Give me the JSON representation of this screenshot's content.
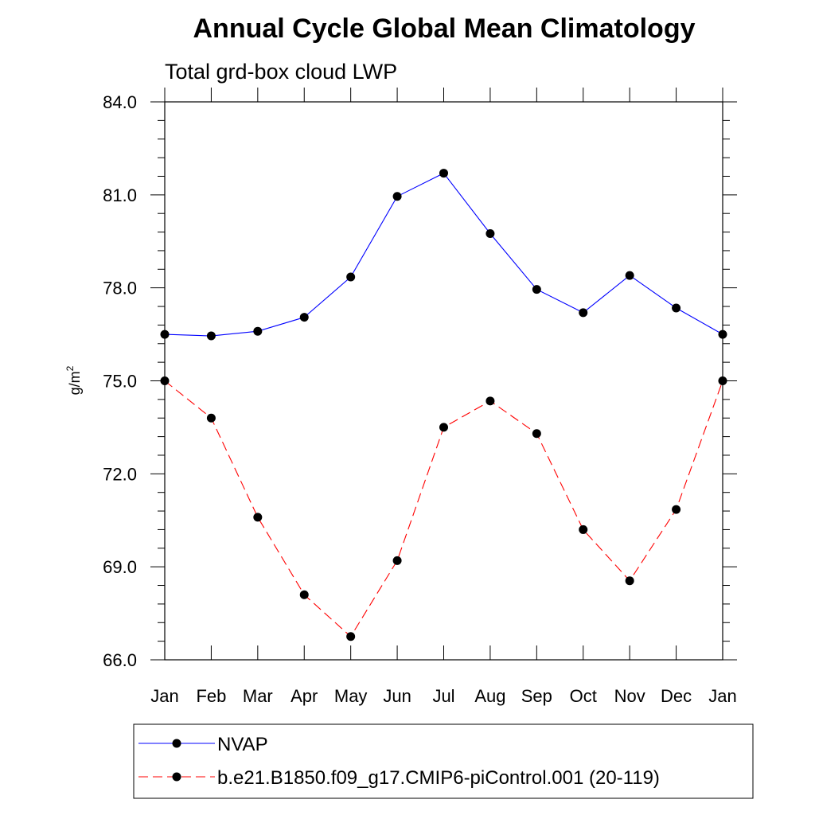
{
  "chart_data": {
    "type": "line",
    "title": "Annual Cycle Global Mean Climatology",
    "subtitle": "Total grd-box cloud LWP",
    "ylabel_base": "g/m",
    "ylabel_sup": "2",
    "categories": [
      "Jan",
      "Feb",
      "Mar",
      "Apr",
      "May",
      "Jun",
      "Jul",
      "Aug",
      "Sep",
      "Oct",
      "Nov",
      "Dec",
      "Jan"
    ],
    "ylim": [
      66.0,
      84.0
    ],
    "yticks": [
      "66.0",
      "69.0",
      "72.0",
      "75.0",
      "78.0",
      "81.0",
      "84.0"
    ],
    "legend_position": "bottom",
    "series": [
      {
        "name": "NVAP",
        "color": "#0000ff",
        "line_style": "solid",
        "values": [
          76.5,
          76.45,
          76.6,
          77.05,
          78.35,
          80.95,
          81.7,
          79.75,
          77.95,
          77.2,
          78.4,
          77.35,
          76.5
        ]
      },
      {
        "name": "b.e21.B1850.f09_g17.CMIP6-piControl.001 (20-119)",
        "color": "#ff0000",
        "line_style": "dashed",
        "values": [
          75.0,
          73.8,
          70.6,
          68.1,
          66.75,
          69.2,
          73.5,
          74.35,
          73.3,
          70.2,
          68.55,
          70.85,
          75.0
        ]
      }
    ]
  }
}
